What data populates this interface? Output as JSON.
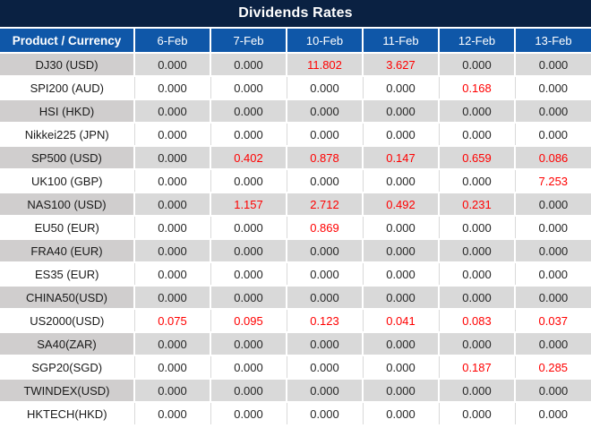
{
  "title": "Dividends Rates",
  "colors": {
    "title_bar_bg": "#0a2142",
    "header_bg": "#0f57a8",
    "header_text": "#ffffff",
    "row_gray_bg": "#d9d9d9",
    "row_label_gray_bg": "#d0cece",
    "row_white_bg": "#ffffff",
    "value_text": "#262626",
    "highlight_red": "#ff0000"
  },
  "table": {
    "header": {
      "product_col": "Product / Currency",
      "dates": [
        "6-Feb",
        "7-Feb",
        "10-Feb",
        "11-Feb",
        "12-Feb",
        "13-Feb"
      ]
    },
    "rows": [
      {
        "label": "DJ30 (USD)",
        "values": [
          "0.000",
          "0.000",
          "11.802",
          "3.627",
          "0.000",
          "0.000"
        ],
        "red": [
          2,
          3
        ]
      },
      {
        "label": "SPI200 (AUD)",
        "values": [
          "0.000",
          "0.000",
          "0.000",
          "0.000",
          "0.168",
          "0.000"
        ],
        "red": [
          4
        ]
      },
      {
        "label": "HSI (HKD)",
        "values": [
          "0.000",
          "0.000",
          "0.000",
          "0.000",
          "0.000",
          "0.000"
        ],
        "red": []
      },
      {
        "label": "Nikkei225 (JPN)",
        "values": [
          "0.000",
          "0.000",
          "0.000",
          "0.000",
          "0.000",
          "0.000"
        ],
        "red": []
      },
      {
        "label": "SP500 (USD)",
        "values": [
          "0.000",
          "0.402",
          "0.878",
          "0.147",
          "0.659",
          "0.086"
        ],
        "red": [
          1,
          2,
          3,
          4,
          5
        ]
      },
      {
        "label": "UK100 (GBP)",
        "values": [
          "0.000",
          "0.000",
          "0.000",
          "0.000",
          "0.000",
          "7.253"
        ],
        "red": [
          5
        ]
      },
      {
        "label": "NAS100 (USD)",
        "values": [
          "0.000",
          "1.157",
          "2.712",
          "0.492",
          "0.231",
          "0.000"
        ],
        "red": [
          1,
          2,
          3,
          4
        ]
      },
      {
        "label": "EU50 (EUR)",
        "values": [
          "0.000",
          "0.000",
          "0.869",
          "0.000",
          "0.000",
          "0.000"
        ],
        "red": [
          2
        ]
      },
      {
        "label": "FRA40 (EUR)",
        "values": [
          "0.000",
          "0.000",
          "0.000",
          "0.000",
          "0.000",
          "0.000"
        ],
        "red": []
      },
      {
        "label": "ES35 (EUR)",
        "values": [
          "0.000",
          "0.000",
          "0.000",
          "0.000",
          "0.000",
          "0.000"
        ],
        "red": []
      },
      {
        "label": "CHINA50(USD)",
        "values": [
          "0.000",
          "0.000",
          "0.000",
          "0.000",
          "0.000",
          "0.000"
        ],
        "red": []
      },
      {
        "label": "US2000(USD)",
        "values": [
          "0.075",
          "0.095",
          "0.123",
          "0.041",
          "0.083",
          "0.037"
        ],
        "red": [
          0,
          1,
          2,
          3,
          4,
          5
        ]
      },
      {
        "label": "SA40(ZAR)",
        "values": [
          "0.000",
          "0.000",
          "0.000",
          "0.000",
          "0.000",
          "0.000"
        ],
        "red": []
      },
      {
        "label": "SGP20(SGD)",
        "values": [
          "0.000",
          "0.000",
          "0.000",
          "0.000",
          "0.187",
          "0.285"
        ],
        "red": [
          4,
          5
        ]
      },
      {
        "label": "TWINDEX(USD)",
        "values": [
          "0.000",
          "0.000",
          "0.000",
          "0.000",
          "0.000",
          "0.000"
        ],
        "red": []
      },
      {
        "label": "HKTECH(HKD)",
        "values": [
          "0.000",
          "0.000",
          "0.000",
          "0.000",
          "0.000",
          "0.000"
        ],
        "red": []
      }
    ]
  },
  "chart_data": {
    "type": "table",
    "title": "Dividends Rates",
    "categories": [
      "6-Feb",
      "7-Feb",
      "10-Feb",
      "11-Feb",
      "12-Feb",
      "13-Feb"
    ],
    "series": [
      {
        "name": "DJ30 (USD)",
        "values": [
          0.0,
          0.0,
          11.802,
          3.627,
          0.0,
          0.0
        ]
      },
      {
        "name": "SPI200 (AUD)",
        "values": [
          0.0,
          0.0,
          0.0,
          0.0,
          0.168,
          0.0
        ]
      },
      {
        "name": "HSI (HKD)",
        "values": [
          0.0,
          0.0,
          0.0,
          0.0,
          0.0,
          0.0
        ]
      },
      {
        "name": "Nikkei225 (JPN)",
        "values": [
          0.0,
          0.0,
          0.0,
          0.0,
          0.0,
          0.0
        ]
      },
      {
        "name": "SP500 (USD)",
        "values": [
          0.0,
          0.402,
          0.878,
          0.147,
          0.659,
          0.086
        ]
      },
      {
        "name": "UK100 (GBP)",
        "values": [
          0.0,
          0.0,
          0.0,
          0.0,
          0.0,
          7.253
        ]
      },
      {
        "name": "NAS100 (USD)",
        "values": [
          0.0,
          1.157,
          2.712,
          0.492,
          0.231,
          0.0
        ]
      },
      {
        "name": "EU50 (EUR)",
        "values": [
          0.0,
          0.0,
          0.869,
          0.0,
          0.0,
          0.0
        ]
      },
      {
        "name": "FRA40 (EUR)",
        "values": [
          0.0,
          0.0,
          0.0,
          0.0,
          0.0,
          0.0
        ]
      },
      {
        "name": "ES35 (EUR)",
        "values": [
          0.0,
          0.0,
          0.0,
          0.0,
          0.0,
          0.0
        ]
      },
      {
        "name": "CHINA50(USD)",
        "values": [
          0.0,
          0.0,
          0.0,
          0.0,
          0.0,
          0.0
        ]
      },
      {
        "name": "US2000(USD)",
        "values": [
          0.075,
          0.095,
          0.123,
          0.041,
          0.083,
          0.037
        ]
      },
      {
        "name": "SA40(ZAR)",
        "values": [
          0.0,
          0.0,
          0.0,
          0.0,
          0.0,
          0.0
        ]
      },
      {
        "name": "SGP20(SGD)",
        "values": [
          0.0,
          0.0,
          0.0,
          0.0,
          0.187,
          0.285
        ]
      },
      {
        "name": "TWINDEX(USD)",
        "values": [
          0.0,
          0.0,
          0.0,
          0.0,
          0.0,
          0.0
        ]
      },
      {
        "name": "HKTECH(HKD)",
        "values": [
          0.0,
          0.0,
          0.0,
          0.0,
          0.0,
          0.0
        ]
      }
    ],
    "row_header_label": "Product / Currency",
    "legend_position": "none",
    "grid": true,
    "note_red_means": "non-zero highlighted dividend values shown in red"
  }
}
